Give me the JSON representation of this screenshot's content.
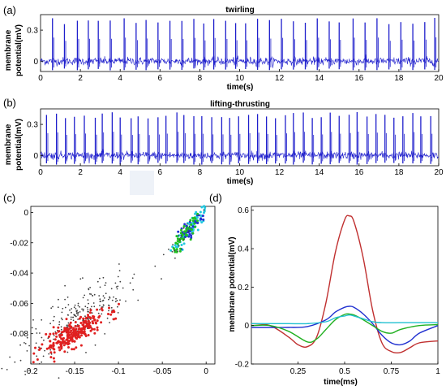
{
  "panels": {
    "a": "(a)",
    "b": "(b)",
    "c": "(c)",
    "d": "(d)"
  },
  "chart_data": [
    {
      "id": "a",
      "type": "line",
      "title": "twirling",
      "xlabel": "time(s)",
      "ylabel_lines": [
        "membrane",
        "potential(mV)"
      ],
      "xlim": [
        0,
        20
      ],
      "ylim": [
        -0.1,
        0.45
      ],
      "xticks": [
        0,
        2,
        4,
        6,
        8,
        10,
        12,
        14,
        16,
        18,
        20
      ],
      "yticks": [
        0,
        0.3
      ],
      "xtick_labels": [
        "0",
        "2",
        "4",
        "6",
        "8",
        "10",
        "12",
        "14",
        "16",
        "18",
        "20"
      ],
      "ytick_labels": [
        "0",
        "0.3"
      ],
      "color": "#1f1fcc",
      "baseline_noise_mV": 0.035,
      "spike_times_s": [
        0.6,
        1.2,
        1.85,
        2.4,
        2.9,
        3.5,
        4.2,
        4.8,
        5.3,
        5.9,
        6.5,
        7.1,
        7.7,
        8.2,
        8.7,
        9.3,
        9.8,
        10.3,
        10.9,
        11.5,
        12.1,
        12.7,
        13.3,
        13.9,
        14.5,
        15.0,
        15.7,
        16.3,
        16.9,
        17.5,
        18.1,
        18.7,
        19.3,
        19.8
      ],
      "spike_peak_mV": 0.42
    },
    {
      "id": "b",
      "type": "line",
      "title": "lifting-thrusting",
      "xlabel": "time(s)",
      "ylabel_lines": [
        "membrane",
        "potential(mV)"
      ],
      "xlim": [
        0,
        20
      ],
      "ylim": [
        -0.1,
        0.45
      ],
      "xticks": [
        0,
        2,
        4,
        6,
        8,
        10,
        12,
        14,
        16,
        18,
        20
      ],
      "yticks": [
        0,
        0.3
      ],
      "xtick_labels": [
        "0",
        "2",
        "4",
        "6",
        "8",
        "10",
        "12",
        "14",
        "16",
        "18",
        "20"
      ],
      "ytick_labels": [
        "0",
        "0.3"
      ],
      "color": "#1f1fcc",
      "baseline_noise_mV": 0.035,
      "spike_times_s": [
        0.3,
        0.8,
        1.25,
        1.7,
        2.2,
        2.75,
        3.1,
        3.6,
        4.0,
        4.55,
        4.9,
        5.4,
        5.9,
        6.3,
        6.85,
        7.2,
        7.7,
        8.1,
        8.6,
        9.1,
        9.5,
        9.95,
        10.45,
        10.9,
        11.35,
        11.8,
        12.3,
        12.7,
        13.2,
        13.65,
        14.1,
        14.55,
        15.0,
        15.5,
        15.9,
        16.4,
        16.85,
        17.3,
        17.75,
        18.2,
        18.7,
        19.1,
        19.6
      ],
      "spike_peak_mV": 0.42
    },
    {
      "id": "c",
      "type": "scatter",
      "xlim": [
        -0.2,
        0.01
      ],
      "ylim": [
        -0.1,
        0.004
      ],
      "xticks": [
        -0.2,
        -0.15,
        -0.1,
        -0.05,
        0
      ],
      "yticks": [
        0,
        -0.02,
        -0.04,
        -0.06,
        -0.08
      ],
      "xtick_labels": [
        "-0.2",
        "-0.15",
        "-0.1",
        "-0.05",
        "0"
      ],
      "ytick_labels": [
        "0",
        "-0.02",
        "-0.04",
        "-0.06",
        "-0.08"
      ],
      "clusters": [
        {
          "color": "#404040",
          "n": 230,
          "center": [
            -0.145,
            -0.068
          ],
          "spread": [
            0.028,
            0.009
          ],
          "slope": 0.32
        },
        {
          "color": "#e02020",
          "n": 260,
          "center": [
            -0.152,
            -0.08
          ],
          "spread": [
            0.018,
            0.004
          ],
          "slope": 0.3
        },
        {
          "color": "#20c8e0",
          "n": 70,
          "center": [
            -0.017,
            -0.01
          ],
          "spread": [
            0.01,
            0.003
          ],
          "slope": 0.7
        },
        {
          "color": "#2030d0",
          "n": 50,
          "center": [
            -0.02,
            -0.013
          ],
          "spread": [
            0.008,
            0.003
          ],
          "slope": 0.7
        },
        {
          "color": "#20c020",
          "n": 50,
          "center": [
            -0.026,
            -0.016
          ],
          "spread": [
            0.008,
            0.003
          ],
          "slope": 0.7
        },
        {
          "color": "#404040",
          "n": 20,
          "center": [
            -0.03,
            -0.017
          ],
          "spread": [
            0.013,
            0.005
          ],
          "slope": 0.7
        }
      ]
    },
    {
      "id": "d",
      "type": "line",
      "xlabel": "time(ms)",
      "ylabel": "membrane potential(mV)",
      "xlim": [
        0,
        1
      ],
      "ylim": [
        -0.2,
        0.62
      ],
      "xticks": [
        0.25,
        0.5,
        0.75,
        1
      ],
      "yticks": [
        -0.2,
        0,
        0.2,
        0.4,
        0.6
      ],
      "xtick_labels": [
        "0.25",
        "0.5",
        "0.75",
        "1"
      ],
      "ytick_labels": [
        "-0.2",
        "0",
        "0.2",
        "0.4",
        "0.6"
      ],
      "series": [
        {
          "color": "#c03030",
          "x": [
            0,
            0.1,
            0.2,
            0.25,
            0.3,
            0.35,
            0.4,
            0.45,
            0.5,
            0.525,
            0.55,
            0.6,
            0.65,
            0.7,
            0.75,
            0.8,
            0.85,
            0.9,
            1.0
          ],
          "y": [
            0.01,
            0.0,
            -0.06,
            -0.1,
            -0.11,
            -0.06,
            0.12,
            0.38,
            0.55,
            0.57,
            0.54,
            0.35,
            0.08,
            -0.09,
            -0.135,
            -0.14,
            -0.115,
            -0.09,
            -0.08
          ]
        },
        {
          "color": "#2030d0",
          "x": [
            0,
            0.1,
            0.2,
            0.3,
            0.4,
            0.45,
            0.5,
            0.525,
            0.55,
            0.6,
            0.65,
            0.7,
            0.75,
            0.8,
            0.85,
            0.9,
            1.0
          ],
          "y": [
            -0.01,
            -0.01,
            -0.01,
            -0.005,
            0.03,
            0.07,
            0.095,
            0.1,
            0.095,
            0.06,
            0.01,
            -0.05,
            -0.09,
            -0.1,
            -0.08,
            -0.04,
            0.0
          ]
        },
        {
          "color": "#20b020",
          "x": [
            0,
            0.1,
            0.2,
            0.3,
            0.35,
            0.4,
            0.45,
            0.5,
            0.525,
            0.55,
            0.6,
            0.65,
            0.7,
            0.75,
            0.8,
            0.9,
            1.0
          ],
          "y": [
            0.0,
            0.0,
            -0.03,
            -0.085,
            -0.07,
            -0.02,
            0.03,
            0.058,
            0.06,
            0.055,
            0.03,
            0.0,
            -0.03,
            -0.04,
            -0.02,
            0.0,
            0.005
          ]
        },
        {
          "color": "#20c0d0",
          "x": [
            0,
            0.1,
            0.2,
            0.3,
            0.4,
            0.45,
            0.5,
            0.525,
            0.55,
            0.6,
            0.65,
            0.7,
            0.8,
            0.9,
            1.0
          ],
          "y": [
            0.01,
            0.01,
            0.01,
            0.01,
            0.02,
            0.04,
            0.05,
            0.055,
            0.05,
            0.035,
            0.02,
            0.015,
            0.015,
            0.015,
            0.015
          ]
        }
      ]
    }
  ]
}
